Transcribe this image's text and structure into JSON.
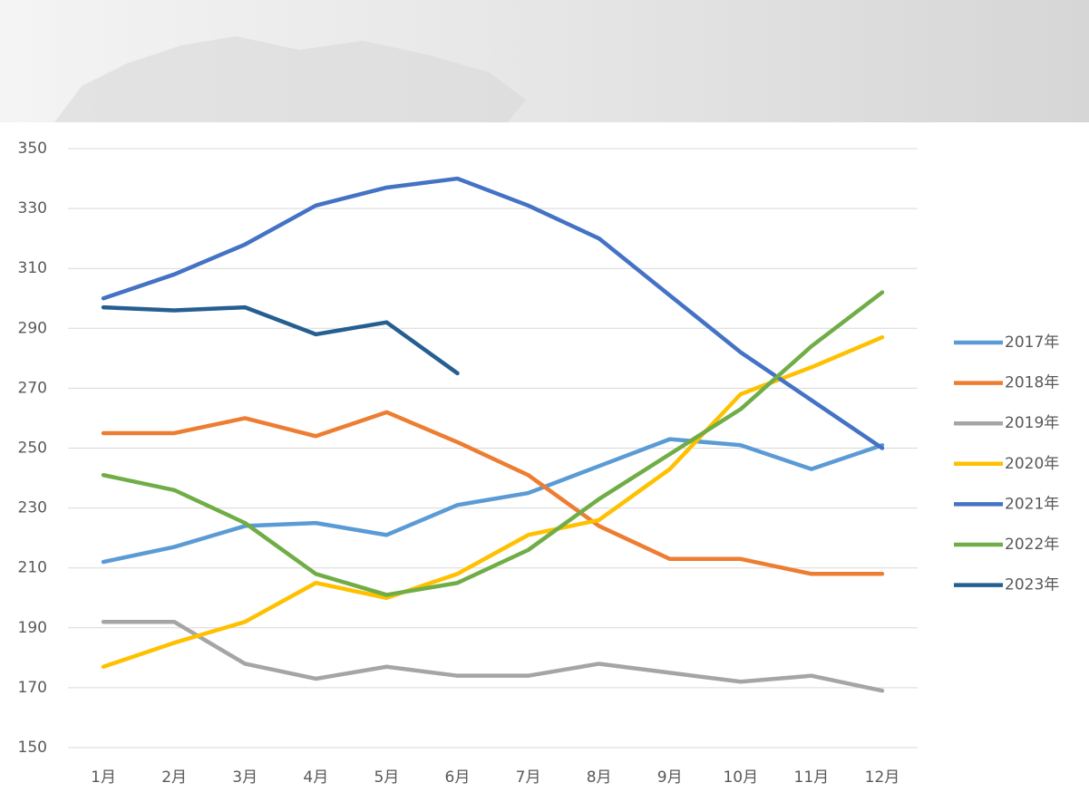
{
  "chart_data": {
    "type": "line",
    "categories": [
      "1月",
      "2月",
      "3月",
      "4月",
      "5月",
      "6月",
      "7月",
      "8月",
      "9月",
      "10月",
      "11月",
      "12月"
    ],
    "series": [
      {
        "name": "2017年",
        "color": "#5b9bd5",
        "values": [
          212,
          217,
          224,
          225,
          221,
          231,
          235,
          244,
          253,
          251,
          243,
          251
        ]
      },
      {
        "name": "2018年",
        "color": "#ed7d31",
        "values": [
          255,
          255,
          260,
          254,
          262,
          252,
          241,
          224,
          213,
          213,
          208,
          208
        ]
      },
      {
        "name": "2019年",
        "color": "#a5a5a5",
        "values": [
          192,
          192,
          178,
          173,
          177,
          174,
          174,
          178,
          175,
          172,
          174,
          169
        ]
      },
      {
        "name": "2020年",
        "color": "#ffc000",
        "values": [
          177,
          185,
          192,
          205,
          200,
          208,
          221,
          226,
          243,
          268,
          277,
          287
        ]
      },
      {
        "name": "2021年",
        "color": "#4472c4",
        "values": [
          300,
          308,
          318,
          331,
          337,
          340,
          331,
          320,
          301,
          282,
          266,
          250
        ]
      },
      {
        "name": "2022年",
        "color": "#70ad47",
        "values": [
          241,
          236,
          225,
          208,
          201,
          205,
          216,
          233,
          248,
          263,
          284,
          302
        ]
      },
      {
        "name": "2023年",
        "color": "#255e91",
        "values": [
          297,
          296,
          297,
          288,
          292,
          275,
          null,
          null,
          null,
          null,
          null,
          null
        ]
      }
    ],
    "ylim": [
      150,
      350
    ],
    "yticks": [
      150,
      170,
      190,
      210,
      230,
      250,
      270,
      290,
      310,
      330,
      350
    ],
    "grid": true,
    "legend": "right"
  }
}
